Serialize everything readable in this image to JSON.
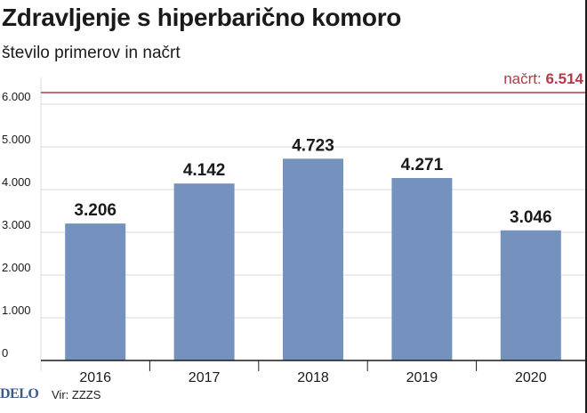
{
  "header": {
    "title": "Zdravljenje s hiperbarično komoro",
    "subtitle": "število primerov in načrt"
  },
  "footer": {
    "logo": "DELO",
    "source": "Vir: ZZZS"
  },
  "colors": {
    "bar": "#7592be",
    "target_line": "#b23a48",
    "target_text": "#b23a48",
    "grid": "#d9d9d9",
    "text": "#1a1a1a"
  },
  "chart_data": {
    "type": "bar",
    "categories": [
      "2016",
      "2017",
      "2018",
      "2019",
      "2020"
    ],
    "values": [
      3206,
      4142,
      4723,
      4271,
      3046
    ],
    "value_labels": [
      "3.206",
      "4.142",
      "4.723",
      "4.271",
      "3.046"
    ],
    "title": "Zdravljenje s hiperbarično komoro",
    "subtitle": "število primerov in načrt",
    "ylim": [
      0,
      6000
    ],
    "yticks": [
      0,
      1000,
      2000,
      3000,
      4000,
      5000,
      6000
    ],
    "ytick_labels": [
      "0",
      "1.000",
      "2.000",
      "3.000",
      "4.000",
      "5.000",
      "6.000"
    ],
    "grid": true,
    "target": {
      "value": 6514,
      "label_prefix": "načrt:",
      "label_value": "6.514"
    }
  }
}
